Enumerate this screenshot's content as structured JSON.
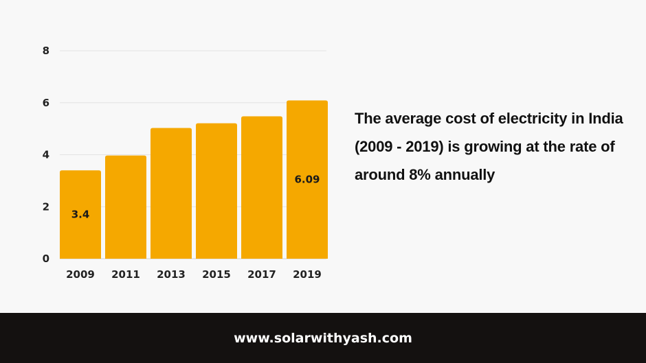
{
  "chart_data": {
    "type": "bar",
    "categories": [
      "2009",
      "2011",
      "2013",
      "2015",
      "2017",
      "2019"
    ],
    "values": [
      3.4,
      3.97,
      5.03,
      5.21,
      5.48,
      6.09
    ],
    "data_labels": {
      "0": "3.4",
      "5": "6.09"
    },
    "ylim": [
      0,
      8
    ],
    "yticks": [
      0,
      2,
      4,
      6,
      8
    ],
    "grid": true,
    "bar_color": "#f5a800",
    "title": "",
    "xlabel": "",
    "ylabel": ""
  },
  "caption": "The average cost of electricity in India (2009 - 2019) is growing at the rate of around 8% annually",
  "footer": {
    "website": "www.solarwithyash.com"
  }
}
